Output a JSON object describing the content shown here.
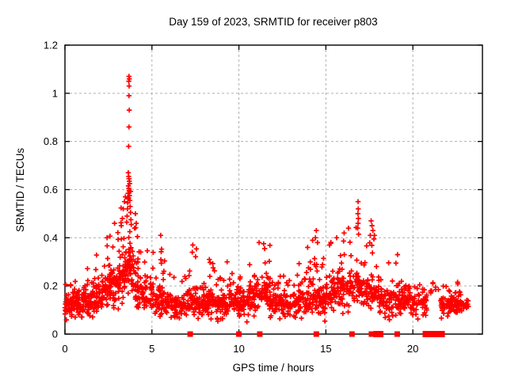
{
  "window": {
    "background": "#ffffff"
  },
  "chart_data": {
    "type": "scatter",
    "title": "Day 159 of 2023, SRMTID for receiver p803",
    "xlabel": "GPS time / hours",
    "ylabel": "SRMTID / TECUs",
    "xlim": [
      0,
      24
    ],
    "ylim": [
      0,
      1.2
    ],
    "xticks": [
      0,
      5,
      10,
      15,
      20
    ],
    "xtick_labels": [
      "0",
      "5",
      "10",
      "15",
      "20"
    ],
    "yticks": [
      0,
      0.2,
      0.4,
      0.6,
      0.8,
      1.0,
      1.2
    ],
    "ytick_labels": [
      "0",
      "0.2",
      "0.4",
      "0.6",
      "0.8",
      "1",
      "1.2"
    ],
    "grid": "dashed",
    "legend": "none",
    "marker": "plus",
    "marker_color": "#ff0000",
    "grid_color": "#b0b0b0",
    "axis_color": "#000000",
    "seed": 20230159,
    "density_profile": [
      [
        0.0,
        0.5,
        48,
        0.04,
        0.12,
        0.21
      ],
      [
        0.5,
        1.0,
        48,
        0.04,
        0.12,
        0.24
      ],
      [
        1.0,
        1.5,
        48,
        0.05,
        0.13,
        0.28
      ],
      [
        1.5,
        2.0,
        48,
        0.06,
        0.15,
        0.33
      ],
      [
        2.0,
        2.5,
        48,
        0.07,
        0.17,
        0.4
      ],
      [
        2.5,
        3.0,
        50,
        0.08,
        0.2,
        0.47
      ],
      [
        3.0,
        3.5,
        55,
        0.1,
        0.24,
        0.58
      ],
      [
        3.5,
        3.9,
        45,
        0.12,
        0.27,
        0.64
      ],
      [
        3.9,
        4.4,
        45,
        0.08,
        0.2,
        0.46
      ],
      [
        4.4,
        5.0,
        48,
        0.06,
        0.16,
        0.42
      ],
      [
        5.0,
        5.6,
        48,
        0.05,
        0.14,
        0.4
      ],
      [
        5.6,
        6.2,
        46,
        0.05,
        0.13,
        0.33
      ],
      [
        6.2,
        7.0,
        60,
        0.04,
        0.11,
        0.26
      ],
      [
        7.0,
        7.6,
        46,
        0.05,
        0.13,
        0.36
      ],
      [
        7.6,
        8.2,
        46,
        0.05,
        0.12,
        0.28
      ],
      [
        8.2,
        8.6,
        32,
        0.05,
        0.13,
        0.31
      ],
      [
        8.6,
        9.4,
        60,
        0.04,
        0.12,
        0.27
      ],
      [
        9.4,
        10.0,
        46,
        0.05,
        0.13,
        0.3
      ],
      [
        10.0,
        10.6,
        46,
        0.05,
        0.12,
        0.28
      ],
      [
        10.6,
        11.1,
        40,
        0.06,
        0.15,
        0.31
      ],
      [
        11.1,
        11.8,
        52,
        0.07,
        0.17,
        0.38
      ],
      [
        11.8,
        12.4,
        46,
        0.06,
        0.14,
        0.3
      ],
      [
        12.4,
        13.4,
        72,
        0.05,
        0.12,
        0.26
      ],
      [
        13.4,
        14.0,
        46,
        0.06,
        0.14,
        0.34
      ],
      [
        14.0,
        14.6,
        46,
        0.07,
        0.16,
        0.42
      ],
      [
        14.6,
        15.2,
        46,
        0.05,
        0.14,
        0.32
      ],
      [
        15.2,
        15.8,
        46,
        0.07,
        0.17,
        0.4
      ],
      [
        15.8,
        16.4,
        46,
        0.08,
        0.18,
        0.43
      ],
      [
        16.4,
        17.0,
        46,
        0.08,
        0.2,
        0.48
      ],
      [
        17.0,
        17.5,
        38,
        0.08,
        0.18,
        0.42
      ],
      [
        17.5,
        18.1,
        42,
        0.08,
        0.17,
        0.45
      ],
      [
        18.1,
        18.7,
        40,
        0.05,
        0.13,
        0.3
      ],
      [
        18.7,
        19.3,
        40,
        0.06,
        0.14,
        0.32
      ],
      [
        19.3,
        20.0,
        48,
        0.06,
        0.14,
        0.28
      ],
      [
        20.0,
        20.8,
        52,
        0.05,
        0.13,
        0.25
      ],
      [
        21.0,
        21.5,
        6,
        0.15,
        0.18,
        0.22
      ],
      [
        21.6,
        22.2,
        46,
        0.06,
        0.12,
        0.2
      ],
      [
        22.2,
        22.9,
        50,
        0.06,
        0.12,
        0.22
      ],
      [
        22.9,
        23.2,
        16,
        0.07,
        0.11,
        0.16
      ]
    ],
    "spike_points": [
      [
        3.68,
        1.07
      ],
      [
        3.7,
        1.06
      ],
      [
        3.67,
        1.05
      ],
      [
        3.69,
        1.03
      ],
      [
        3.68,
        0.99
      ],
      [
        3.7,
        0.93
      ],
      [
        3.68,
        0.86
      ],
      [
        3.66,
        0.78
      ],
      [
        3.64,
        0.67
      ],
      [
        3.66,
        0.655
      ],
      [
        3.68,
        0.645
      ],
      [
        3.7,
        0.635
      ],
      [
        3.72,
        0.625
      ],
      [
        3.65,
        0.615
      ],
      [
        3.67,
        0.605
      ],
      [
        3.69,
        0.595
      ],
      [
        3.63,
        0.585
      ],
      [
        3.71,
        0.575
      ],
      [
        3.66,
        0.565
      ],
      [
        3.73,
        0.555
      ],
      [
        3.61,
        0.545
      ],
      [
        3.75,
        0.53
      ],
      [
        3.59,
        0.52
      ],
      [
        3.77,
        0.505
      ],
      [
        3.57,
        0.49
      ],
      [
        3.79,
        0.475
      ],
      [
        3.55,
        0.465
      ],
      [
        3.81,
        0.455
      ],
      [
        3.35,
        0.52
      ],
      [
        3.42,
        0.55
      ],
      [
        3.47,
        0.57
      ],
      [
        3.3,
        0.48
      ],
      [
        3.24,
        0.45
      ],
      [
        4.05,
        0.5
      ],
      [
        4.1,
        0.46
      ],
      [
        4.0,
        0.44
      ],
      [
        2.85,
        0.46
      ],
      [
        2.42,
        0.4
      ],
      [
        16.85,
        0.55
      ],
      [
        16.86,
        0.52
      ],
      [
        16.84,
        0.5
      ],
      [
        16.87,
        0.48
      ],
      [
        16.85,
        0.46
      ],
      [
        16.83,
        0.44
      ],
      [
        16.88,
        0.415
      ],
      [
        16.3,
        0.44
      ],
      [
        16.05,
        0.42
      ],
      [
        15.62,
        0.4
      ],
      [
        17.6,
        0.47
      ],
      [
        17.65,
        0.45
      ],
      [
        17.7,
        0.43
      ],
      [
        17.55,
        0.41
      ],
      [
        17.76,
        0.395
      ],
      [
        14.45,
        0.43
      ],
      [
        14.4,
        0.4
      ],
      [
        14.52,
        0.38
      ],
      [
        11.42,
        0.375
      ],
      [
        11.48,
        0.355
      ],
      [
        5.5,
        0.41
      ],
      [
        7.35,
        0.37
      ],
      [
        7.32,
        0.34
      ],
      [
        8.3,
        0.31
      ],
      [
        9.32,
        0.3
      ],
      [
        19.12,
        0.33
      ],
      [
        13.95,
        0.36
      ],
      [
        21.15,
        0.21
      ],
      [
        21.3,
        0.195
      ],
      [
        21.05,
        0.18
      ]
    ],
    "zero_markers": {
      "points": [
        7.2,
        10.0,
        11.2,
        14.45,
        16.5,
        17.62,
        17.78,
        19.1
      ],
      "ranges": [
        [
          17.9,
          18.15
        ],
        [
          20.72,
          21.68
        ]
      ]
    }
  }
}
